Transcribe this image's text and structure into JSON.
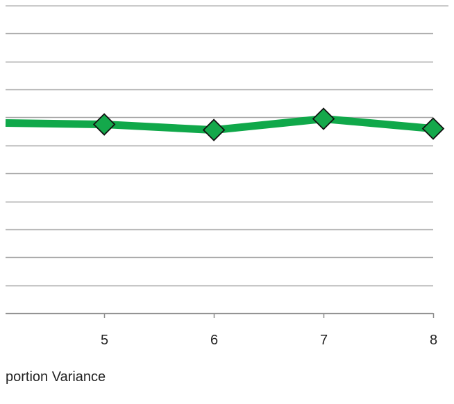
{
  "chart_data": {
    "type": "line",
    "title": "",
    "xlabel": "",
    "ylabel": "",
    "x_ticks": [
      "5",
      "6",
      "7",
      "8"
    ],
    "series": [
      {
        "x": [
          4,
          5,
          6,
          7,
          8
        ],
        "y": [
          6.8,
          6.75,
          6.55,
          6.95,
          6.6
        ],
        "color": "#10a84a",
        "marker": "diamond",
        "marker_color": "#14a84b"
      }
    ],
    "xlim": [
      4.1,
      8
    ],
    "ylim": [
      0,
      11
    ],
    "grid": true,
    "gridline_color": "#a6a6a6"
  },
  "footer": {
    "label": "portion Variance"
  }
}
